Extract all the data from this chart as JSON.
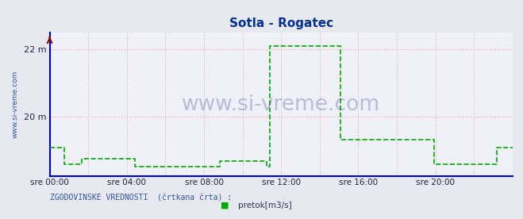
{
  "title": "Sotla - Rogatec",
  "title_color": "#003399",
  "bg_color": "#e8e8f0",
  "plot_bg_color": "#f0f0f8",
  "grid_color_h": "#ffaaaa",
  "grid_color_v": "#ddaaaa",
  "axis_color": "#0000cc",
  "line_color": "#00aa00",
  "line_width": 1.2,
  "ylabel_text": "www.si-vreme.com",
  "ylabel_color": "#3355aa",
  "watermark": "www.si-vreme.com",
  "watermark_color": "#1a2080",
  "watermark_alpha": 0.25,
  "legend_label": "pretok[m3/s]",
  "legend_text": "ZGODOVINSKE VREDNOSTI  (črtkana črta) :",
  "xlim": [
    0,
    288
  ],
  "ylim": [
    18.2,
    22.5
  ],
  "yticks": [
    20,
    22
  ],
  "ytick_labels": [
    "20 m",
    "22 m"
  ],
  "xtick_positions": [
    0,
    48,
    96,
    144,
    192,
    240
  ],
  "xtick_labels": [
    "sre 00:00",
    "sre 04:00",
    "sre 08:00",
    "sre 12:00",
    "sre 16:00",
    "sre 20:00"
  ],
  "flow_data": [
    [
      0,
      19.05
    ],
    [
      8,
      19.05
    ],
    [
      9,
      18.55
    ],
    [
      11,
      18.55
    ],
    [
      12,
      18.55
    ],
    [
      13,
      18.55
    ],
    [
      14,
      18.55
    ],
    [
      15,
      18.55
    ],
    [
      16,
      18.55
    ],
    [
      17,
      18.55
    ],
    [
      18,
      18.55
    ],
    [
      19,
      18.55
    ],
    [
      20,
      18.72
    ],
    [
      52,
      18.72
    ],
    [
      53,
      18.5
    ],
    [
      96,
      18.5
    ],
    [
      97,
      18.5
    ],
    [
      105,
      18.5
    ],
    [
      106,
      18.65
    ],
    [
      134,
      18.65
    ],
    [
      135,
      18.5
    ],
    [
      136,
      18.5
    ],
    [
      137,
      22.1
    ],
    [
      180,
      22.1
    ],
    [
      181,
      19.3
    ],
    [
      238,
      19.3
    ],
    [
      239,
      18.55
    ],
    [
      277,
      18.55
    ],
    [
      278,
      19.05
    ],
    [
      288,
      19.05
    ]
  ]
}
